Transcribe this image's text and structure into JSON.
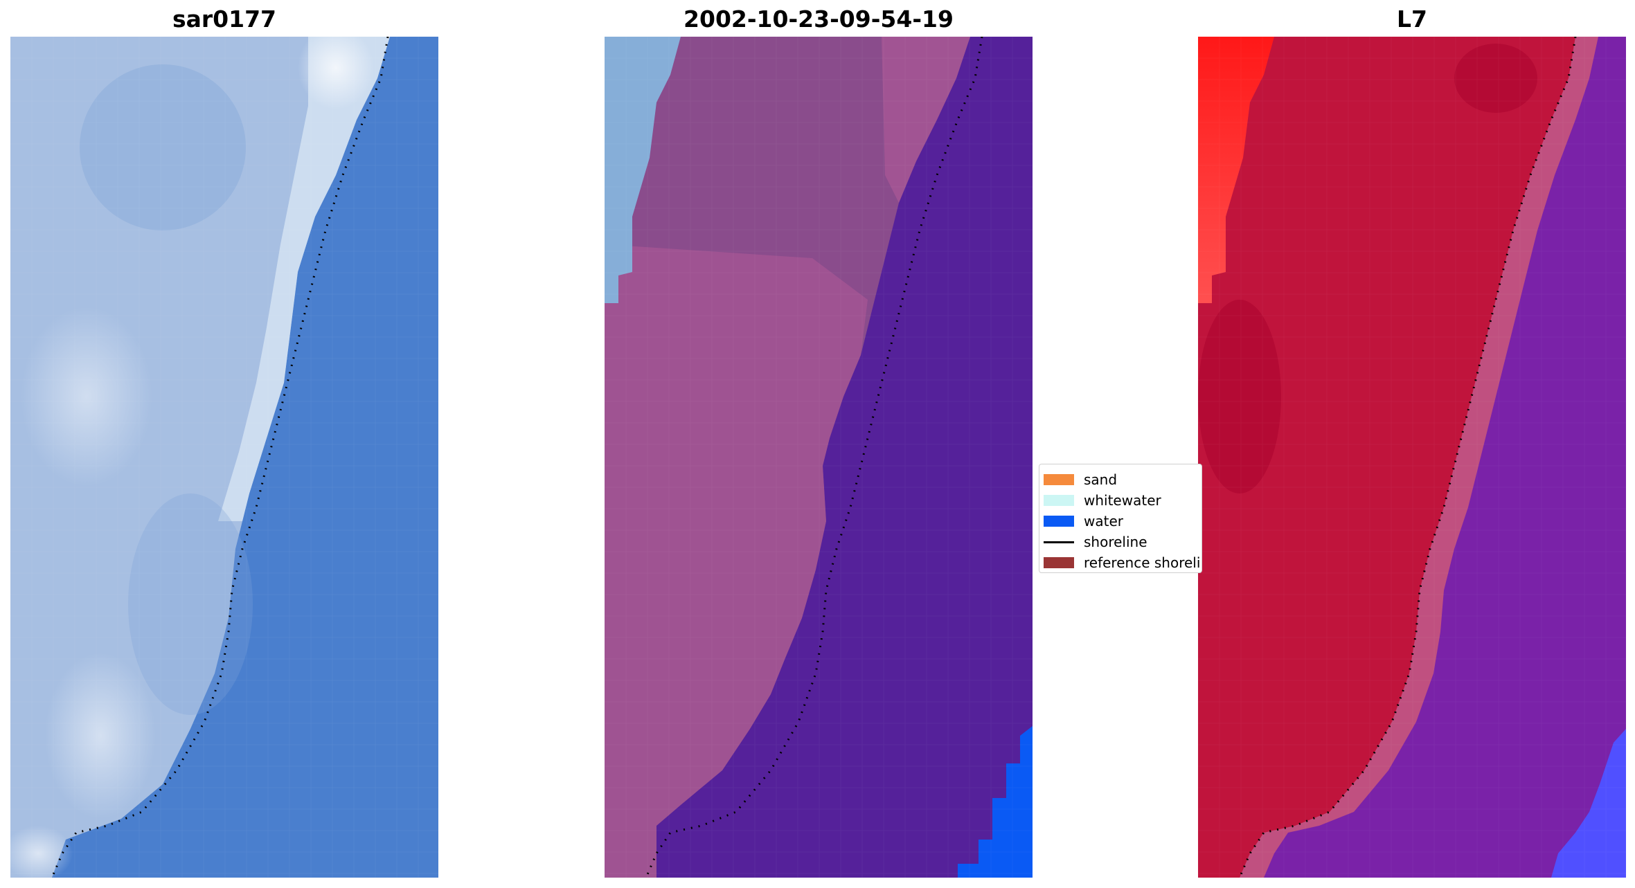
{
  "panels": [
    {
      "title": "sar0177",
      "description": "rgb-satellite-image",
      "colors": {
        "land": "#a7bfe2",
        "bright": "#eef3f8",
        "water": "#4a7fce"
      }
    },
    {
      "title": "2002-10-23-09-54-19",
      "description": "classified-image",
      "colors": {
        "land": "#8a4c8c",
        "pink": "#b05a98",
        "sky": "#86aed8",
        "water": "#55219a",
        "blue_water": "#0a5af4"
      }
    },
    {
      "title": "L7",
      "description": "mndwi-image",
      "colors": {
        "land": "#c0143c",
        "bright": "#ff2020",
        "band": "#c05080",
        "water": "#7a22a8",
        "blue": "#5050ff"
      }
    }
  ],
  "legend": {
    "items": [
      {
        "label": "sand",
        "color": "#f58a3c",
        "kind": "patch"
      },
      {
        "label": "whitewater",
        "color": "#ccf6f4",
        "kind": "patch"
      },
      {
        "label": "water",
        "color": "#0a5af4",
        "kind": "patch"
      },
      {
        "label": "shoreline",
        "color": "#000000",
        "kind": "line"
      },
      {
        "label": "reference shoreline",
        "color": "#9a3535",
        "kind": "patch"
      }
    ]
  }
}
